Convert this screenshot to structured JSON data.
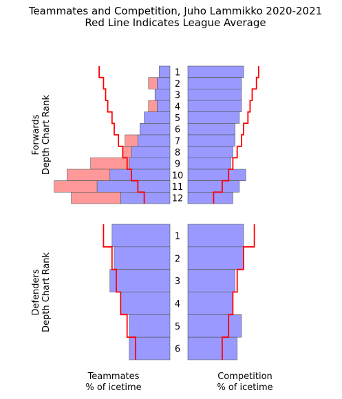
{
  "title_line1": "Teammates and Competition, Juho Lammikko 2020-2021",
  "title_line2": "Red Line Indicates League Average",
  "left_xlabel_line1": "Teammates",
  "left_xlabel_line2": "% of icetime",
  "right_xlabel_line1": "Competition",
  "right_xlabel_line2": "% of icetime",
  "colors": {
    "bar": "#9999ff",
    "extra": "#ff9999",
    "average_line": "#ff0000",
    "edge": "#555555"
  },
  "chart_data": [
    {
      "type": "bar",
      "title": "Forwards Depth Chart Rank",
      "ylabel_line1": "Forwards",
      "ylabel_line2": "Depth Chart Rank",
      "ranks": [
        "1",
        "2",
        "3",
        "4",
        "5",
        "6",
        "7",
        "8",
        "9",
        "10",
        "11",
        "12"
      ],
      "x_max": 0.6,
      "teammates": {
        "base_values": [
          0.05,
          0.06,
          0.07,
          0.06,
          0.12,
          0.14,
          0.15,
          0.18,
          0.19,
          0.28,
          0.34,
          0.23
        ],
        "extra_values": [
          0.0,
          0.04,
          0.0,
          0.04,
          0.0,
          0.0,
          0.06,
          0.04,
          0.18,
          0.2,
          0.2,
          0.23
        ],
        "league_average": [
          0.33,
          0.31,
          0.3,
          0.29,
          0.27,
          0.26,
          0.24,
          0.22,
          0.2,
          0.18,
          0.15,
          0.12
        ]
      },
      "competition": {
        "values": [
          0.26,
          0.25,
          0.25,
          0.25,
          0.24,
          0.22,
          0.22,
          0.21,
          0.2,
          0.27,
          0.24,
          0.21
        ],
        "league_average": [
          0.33,
          0.32,
          0.3,
          0.29,
          0.28,
          0.26,
          0.25,
          0.23,
          0.21,
          0.19,
          0.16,
          0.12
        ]
      }
    },
    {
      "type": "bar",
      "title": "Defenders Depth Chart Rank",
      "ylabel_line1": "Defenders",
      "ylabel_line2": "Depth Chart Rank",
      "ranks": [
        "1",
        "2",
        "3",
        "4",
        "5",
        "6"
      ],
      "x_max": 0.6,
      "teammates": {
        "base_values": [
          0.27,
          0.26,
          0.28,
          0.23,
          0.19,
          0.19
        ],
        "extra_values": [
          0.0,
          0.0,
          0.0,
          0.0,
          0.0,
          0.0
        ],
        "league_average": [
          0.31,
          0.27,
          0.25,
          0.23,
          0.2,
          0.16
        ]
      },
      "competition": {
        "values": [
          0.26,
          0.26,
          0.22,
          0.21,
          0.25,
          0.23
        ],
        "league_average": [
          0.31,
          0.26,
          0.23,
          0.21,
          0.19,
          0.16
        ]
      }
    }
  ]
}
